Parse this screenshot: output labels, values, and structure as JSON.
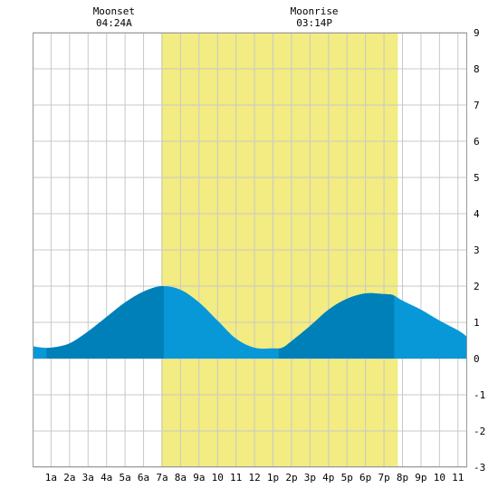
{
  "chart_data": {
    "type": "area",
    "title": "",
    "xlabel": "",
    "ylabel": "",
    "xlim": [
      0,
      23.5
    ],
    "ylim": [
      -3,
      9
    ],
    "y_ticks": [
      9,
      8,
      7,
      6,
      5,
      4,
      3,
      2,
      1,
      0,
      -1,
      -2,
      -3
    ],
    "x_tick_labels": [
      "1a",
      "2a",
      "3a",
      "4a",
      "5a",
      "6a",
      "7a",
      "8a",
      "9a",
      "10",
      "11",
      "12",
      "1p",
      "2p",
      "3p",
      "4p",
      "5p",
      "6p",
      "7p",
      "8p",
      "9p",
      "10",
      "11"
    ],
    "grid": true,
    "daylight": {
      "start": 6.95,
      "end": 19.75,
      "color": "#f2ec82"
    },
    "colors": {
      "tide": "#0898d8",
      "tide_dark": "#0080b8",
      "grid": "#c8c8c8",
      "border": "#999999"
    },
    "series": [
      {
        "x": [
          0,
          0.25,
          1,
          2,
          3,
          4,
          5,
          6,
          7,
          8,
          9,
          10,
          11,
          12,
          13,
          13.5,
          14,
          15,
          16,
          17,
          18,
          19,
          19.5,
          20,
          21,
          22,
          23,
          23.5
        ],
        "values": [
          0.35,
          0.32,
          0.3,
          0.42,
          0.75,
          1.15,
          1.55,
          1.85,
          2.0,
          1.9,
          1.55,
          1.05,
          0.55,
          0.3,
          0.28,
          0.3,
          0.48,
          0.9,
          1.35,
          1.65,
          1.8,
          1.78,
          1.75,
          1.6,
          1.35,
          1.05,
          0.78,
          0.6
        ]
      }
    ],
    "annotations": [
      {
        "label": "Moonset",
        "time": "04:24A",
        "x": 4.4
      },
      {
        "label": "Moonrise",
        "time": "03:14P",
        "x": 15.23
      }
    ]
  }
}
